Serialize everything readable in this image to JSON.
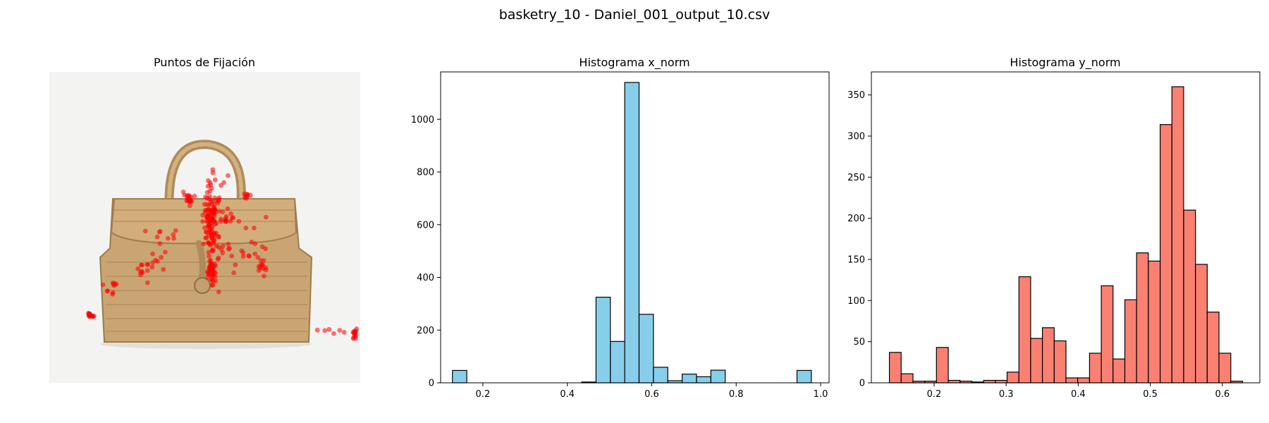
{
  "figure": {
    "suptitle": "basketry_10 - Daniel_001_output_10.csv"
  },
  "panel_image": {
    "title": "Puntos de Fijación",
    "background": "#f3f3f2",
    "marker_color": "#ff0000"
  },
  "chart_data": [
    {
      "type": "histogram",
      "title": "Histograma x_norm",
      "xlabel": "",
      "ylabel": "",
      "color": "#87ceeb",
      "edgecolor": "#000000",
      "xlim": [
        0.1,
        1.02
      ],
      "ylim": [
        0,
        1180
      ],
      "xticks": [
        "0.2",
        "0.4",
        "0.6",
        "0.8",
        "1.0"
      ],
      "yticks": [
        "0",
        "200",
        "400",
        "600",
        "800",
        "1000"
      ],
      "bins": [
        {
          "x0": 0.128,
          "x1": 0.162,
          "count": 47
        },
        {
          "x0": 0.162,
          "x1": 0.196,
          "count": 0
        },
        {
          "x0": 0.196,
          "x1": 0.23,
          "count": 0
        },
        {
          "x0": 0.23,
          "x1": 0.264,
          "count": 0
        },
        {
          "x0": 0.264,
          "x1": 0.298,
          "count": 0
        },
        {
          "x0": 0.298,
          "x1": 0.332,
          "count": 0
        },
        {
          "x0": 0.332,
          "x1": 0.366,
          "count": 0
        },
        {
          "x0": 0.366,
          "x1": 0.4,
          "count": 0
        },
        {
          "x0": 0.4,
          "x1": 0.434,
          "count": 0
        },
        {
          "x0": 0.434,
          "x1": 0.468,
          "count": 3
        },
        {
          "x0": 0.468,
          "x1": 0.502,
          "count": 325
        },
        {
          "x0": 0.502,
          "x1": 0.536,
          "count": 157
        },
        {
          "x0": 0.536,
          "x1": 0.57,
          "count": 1140
        },
        {
          "x0": 0.57,
          "x1": 0.604,
          "count": 260
        },
        {
          "x0": 0.604,
          "x1": 0.638,
          "count": 59
        },
        {
          "x0": 0.638,
          "x1": 0.672,
          "count": 8
        },
        {
          "x0": 0.672,
          "x1": 0.706,
          "count": 33
        },
        {
          "x0": 0.706,
          "x1": 0.74,
          "count": 23
        },
        {
          "x0": 0.74,
          "x1": 0.774,
          "count": 48
        },
        {
          "x0": 0.774,
          "x1": 0.808,
          "count": 0
        },
        {
          "x0": 0.808,
          "x1": 0.842,
          "count": 0
        },
        {
          "x0": 0.842,
          "x1": 0.876,
          "count": 0
        },
        {
          "x0": 0.876,
          "x1": 0.91,
          "count": 0
        },
        {
          "x0": 0.91,
          "x1": 0.944,
          "count": 0
        },
        {
          "x0": 0.944,
          "x1": 0.978,
          "count": 47
        }
      ]
    },
    {
      "type": "histogram",
      "title": "Histograma y_norm",
      "xlabel": "",
      "ylabel": "",
      "color": "#fa8072",
      "edgecolor": "#000000",
      "xlim": [
        0.113,
        0.652
      ],
      "ylim": [
        0,
        378
      ],
      "xticks": [
        "0.2",
        "0.3",
        "0.4",
        "0.5",
        "0.6"
      ],
      "yticks": [
        "0",
        "50",
        "100",
        "150",
        "200",
        "250",
        "300",
        "350"
      ],
      "bins": [
        {
          "x0": 0.138,
          "x1": 0.1543,
          "count": 37
        },
        {
          "x0": 0.1543,
          "x1": 0.1707,
          "count": 11
        },
        {
          "x0": 0.1707,
          "x1": 0.187,
          "count": 2
        },
        {
          "x0": 0.187,
          "x1": 0.2033,
          "count": 2
        },
        {
          "x0": 0.2033,
          "x1": 0.2197,
          "count": 43
        },
        {
          "x0": 0.2197,
          "x1": 0.236,
          "count": 3
        },
        {
          "x0": 0.236,
          "x1": 0.2523,
          "count": 2
        },
        {
          "x0": 0.2523,
          "x1": 0.2687,
          "count": 1
        },
        {
          "x0": 0.2687,
          "x1": 0.285,
          "count": 3
        },
        {
          "x0": 0.285,
          "x1": 0.3013,
          "count": 3
        },
        {
          "x0": 0.3013,
          "x1": 0.3177,
          "count": 13
        },
        {
          "x0": 0.3177,
          "x1": 0.334,
          "count": 129
        },
        {
          "x0": 0.334,
          "x1": 0.3503,
          "count": 54
        },
        {
          "x0": 0.3503,
          "x1": 0.3667,
          "count": 67
        },
        {
          "x0": 0.3667,
          "x1": 0.383,
          "count": 51
        },
        {
          "x0": 0.383,
          "x1": 0.3993,
          "count": 6
        },
        {
          "x0": 0.3993,
          "x1": 0.4157,
          "count": 6
        },
        {
          "x0": 0.4157,
          "x1": 0.432,
          "count": 36
        },
        {
          "x0": 0.432,
          "x1": 0.4483,
          "count": 118
        },
        {
          "x0": 0.4483,
          "x1": 0.4647,
          "count": 29
        },
        {
          "x0": 0.4647,
          "x1": 0.481,
          "count": 101
        },
        {
          "x0": 0.481,
          "x1": 0.4973,
          "count": 158
        },
        {
          "x0": 0.4973,
          "x1": 0.5137,
          "count": 148
        },
        {
          "x0": 0.5137,
          "x1": 0.53,
          "count": 314
        },
        {
          "x0": 0.53,
          "x1": 0.5463,
          "count": 360
        },
        {
          "x0": 0.5463,
          "x1": 0.5627,
          "count": 210
        },
        {
          "x0": 0.5627,
          "x1": 0.579,
          "count": 144
        },
        {
          "x0": 0.579,
          "x1": 0.5953,
          "count": 86
        },
        {
          "x0": 0.5953,
          "x1": 0.6117,
          "count": 36
        },
        {
          "x0": 0.6117,
          "x1": 0.628,
          "count": 2
        }
      ]
    }
  ]
}
